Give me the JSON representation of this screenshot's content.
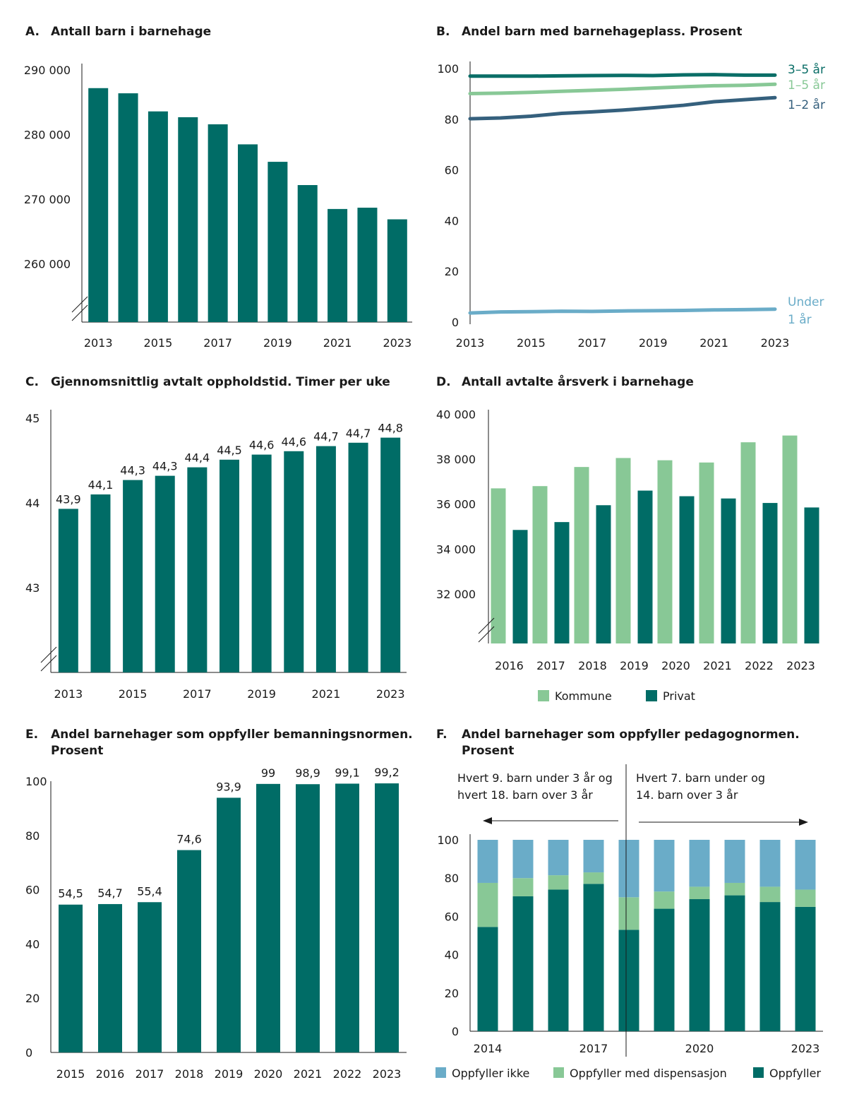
{
  "colors": {
    "dark_teal": "#006c66",
    "light_green": "#88c896",
    "light_blue": "#6aacc8",
    "navy_teal": "#35607d",
    "line_dark": "#0a6e67"
  },
  "chart_data": [
    {
      "id": "A",
      "letter": "A.",
      "type": "bar",
      "title": "Antall barn i barnehage",
      "categories": [
        "2013",
        "2014",
        "2015",
        "2016",
        "2017",
        "2018",
        "2019",
        "2020",
        "2021",
        "2022",
        "2023"
      ],
      "x_tick_labels": [
        "2013",
        "2015",
        "2017",
        "2019",
        "2021",
        "2023"
      ],
      "values": [
        287200,
        286400,
        283600,
        282700,
        281600,
        278500,
        275800,
        272200,
        268500,
        268700,
        266900
      ],
      "y_tick_values": [
        260000,
        270000,
        280000,
        290000
      ],
      "y_tick_labels": [
        "260 000",
        "270 000",
        "280 000",
        "290 000"
      ],
      "ylim": [
        251000,
        291000
      ],
      "axis_break": true
    },
    {
      "id": "B",
      "letter": "B.",
      "type": "line",
      "title": "Andel barn med barnehageplass. Prosent",
      "x": [
        2013,
        2014,
        2015,
        2016,
        2017,
        2018,
        2019,
        2020,
        2021,
        2022,
        2023
      ],
      "x_tick_labels": [
        "2013",
        "2015",
        "2017",
        "2019",
        "2021",
        "2023"
      ],
      "y_tick_values": [
        0,
        20,
        40,
        60,
        80,
        100
      ],
      "y_tick_labels": [
        "0",
        "20",
        "40",
        "60",
        "80",
        "100"
      ],
      "ylim": [
        0,
        100
      ],
      "series": [
        {
          "name": "3–5 år",
          "values": [
            97.0,
            97.0,
            97.0,
            97.1,
            97.2,
            97.3,
            97.2,
            97.5,
            97.6,
            97.4,
            97.4
          ],
          "color": "#0a6e67"
        },
        {
          "name": "1–5 år",
          "values": [
            90.1,
            90.3,
            90.6,
            91.0,
            91.4,
            91.8,
            92.3,
            92.8,
            93.2,
            93.4,
            93.8
          ],
          "color": "#88c896"
        },
        {
          "name": "1–2 år",
          "values": [
            80.2,
            80.5,
            81.2,
            82.3,
            82.9,
            83.6,
            84.5,
            85.5,
            86.9,
            87.7,
            88.5
          ],
          "color": "#35607d"
        },
        {
          "name": "Under 1 år",
          "name_lines": [
            "Under",
            "1 år"
          ],
          "values": [
            3.6,
            4.0,
            4.1,
            4.3,
            4.2,
            4.4,
            4.5,
            4.6,
            4.8,
            4.9,
            5.1
          ],
          "color": "#6aacc8"
        }
      ]
    },
    {
      "id": "C",
      "letter": "C.",
      "type": "bar",
      "title": "Gjennomsnittlig avtalt oppholdstid. Timer per uke",
      "categories": [
        "2013",
        "2014",
        "2015",
        "2016",
        "2017",
        "2018",
        "2019",
        "2020",
        "2021",
        "2022",
        "2023"
      ],
      "x_tick_labels": [
        "2013",
        "2015",
        "2017",
        "2019",
        "2021",
        "2023"
      ],
      "values": [
        43.93,
        44.1,
        44.27,
        44.32,
        44.42,
        44.51,
        44.57,
        44.61,
        44.67,
        44.71,
        44.77
      ],
      "data_labels": [
        "43,9",
        "44,1",
        "44,3",
        "44,3",
        "44,4",
        "44,5",
        "44,6",
        "44,6",
        "44,7",
        "44,7",
        "44,8"
      ],
      "y_tick_values": [
        43,
        44,
        45
      ],
      "y_tick_labels": [
        "43",
        "44",
        "45"
      ],
      "ylim": [
        42.0,
        45.1
      ],
      "axis_break": true
    },
    {
      "id": "D",
      "letter": "D.",
      "type": "bar",
      "title": "Antall avtalte årsverk i barnehage",
      "categories": [
        "2016",
        "2017",
        "2018",
        "2019",
        "2020",
        "2021",
        "2022",
        "2023"
      ],
      "series": [
        {
          "name": "Kommune",
          "values": [
            36700,
            36800,
            37650,
            38050,
            37950,
            37850,
            38750,
            39050
          ],
          "color": "#88c896"
        },
        {
          "name": "Privat",
          "values": [
            34850,
            35200,
            35950,
            36600,
            36350,
            36250,
            36050,
            35850
          ],
          "color": "#006c66"
        }
      ],
      "y_tick_values": [
        32000,
        34000,
        36000,
        38000,
        40000
      ],
      "y_tick_labels": [
        "32 000",
        "34 000",
        "36 000",
        "38 000",
        "40 000"
      ],
      "ylim": [
        29800,
        40200
      ],
      "axis_break": true,
      "legend": "bottom"
    },
    {
      "id": "E",
      "letter": "E.",
      "type": "bar",
      "title": "Andel barnehager som oppfyller bemanningsnormen.",
      "title_line2": "Prosent",
      "categories": [
        "2015",
        "2016",
        "2017",
        "2018",
        "2019",
        "2020",
        "2021",
        "2022",
        "2023"
      ],
      "values": [
        54.5,
        54.7,
        55.4,
        74.6,
        93.9,
        99,
        98.9,
        99.1,
        99.2
      ],
      "data_labels": [
        "54,5",
        "54,7",
        "55,4",
        "74,6",
        "93,9",
        "99",
        "98,9",
        "99,1",
        "99,2"
      ],
      "y_tick_values": [
        0,
        20,
        40,
        60,
        80,
        100
      ],
      "y_tick_labels": [
        "0",
        "20",
        "40",
        "60",
        "80",
        "100"
      ],
      "ylim": [
        0,
        100
      ]
    },
    {
      "id": "F",
      "letter": "F.",
      "type": "bar",
      "stacked": true,
      "title": "Andel barnehager som oppfyller pedagognormen.",
      "title_line2": "Prosent",
      "categories": [
        "2014",
        "2015",
        "2016",
        "2017",
        "2018",
        "2019",
        "2020",
        "2021",
        "2022",
        "2023"
      ],
      "x_tick_labels": [
        "2014",
        "2017",
        "2020",
        "2023"
      ],
      "series": [
        {
          "name": "Oppfyller",
          "values": [
            54.5,
            70.5,
            74.0,
            77.0,
            53.0,
            64.0,
            69.0,
            71.0,
            67.5,
            65.0
          ],
          "color": "#006c66"
        },
        {
          "name": "Oppfyller  med dispensasjon",
          "values": [
            23.0,
            9.5,
            7.5,
            6.0,
            17.0,
            9.0,
            6.5,
            6.5,
            8.0,
            9.0
          ],
          "color": "#88c896"
        },
        {
          "name": "Oppfyller ikke",
          "values": [
            22.5,
            20.0,
            18.5,
            17.0,
            30.0,
            27.0,
            24.5,
            22.5,
            24.5,
            26.0
          ],
          "color": "#6aacc8"
        }
      ],
      "legend_order": [
        "Oppfyller ikke",
        "Oppfyller  med dispensasjon",
        "Oppfyller"
      ],
      "y_tick_values": [
        0,
        20,
        40,
        60,
        80,
        100
      ],
      "y_tick_labels": [
        "0",
        "20",
        "40",
        "60",
        "80",
        "100"
      ],
      "ylim": [
        0,
        100
      ],
      "annotations": [
        {
          "lines": [
            "Hvert 9. barn under 3 år og",
            "hvert 18. barn over 3 år"
          ],
          "arrow": "left"
        },
        {
          "lines": [
            "Hvert 7. barn under og",
            "14. barn over 3 år"
          ],
          "arrow": "right"
        }
      ],
      "legend": "bottom"
    }
  ]
}
